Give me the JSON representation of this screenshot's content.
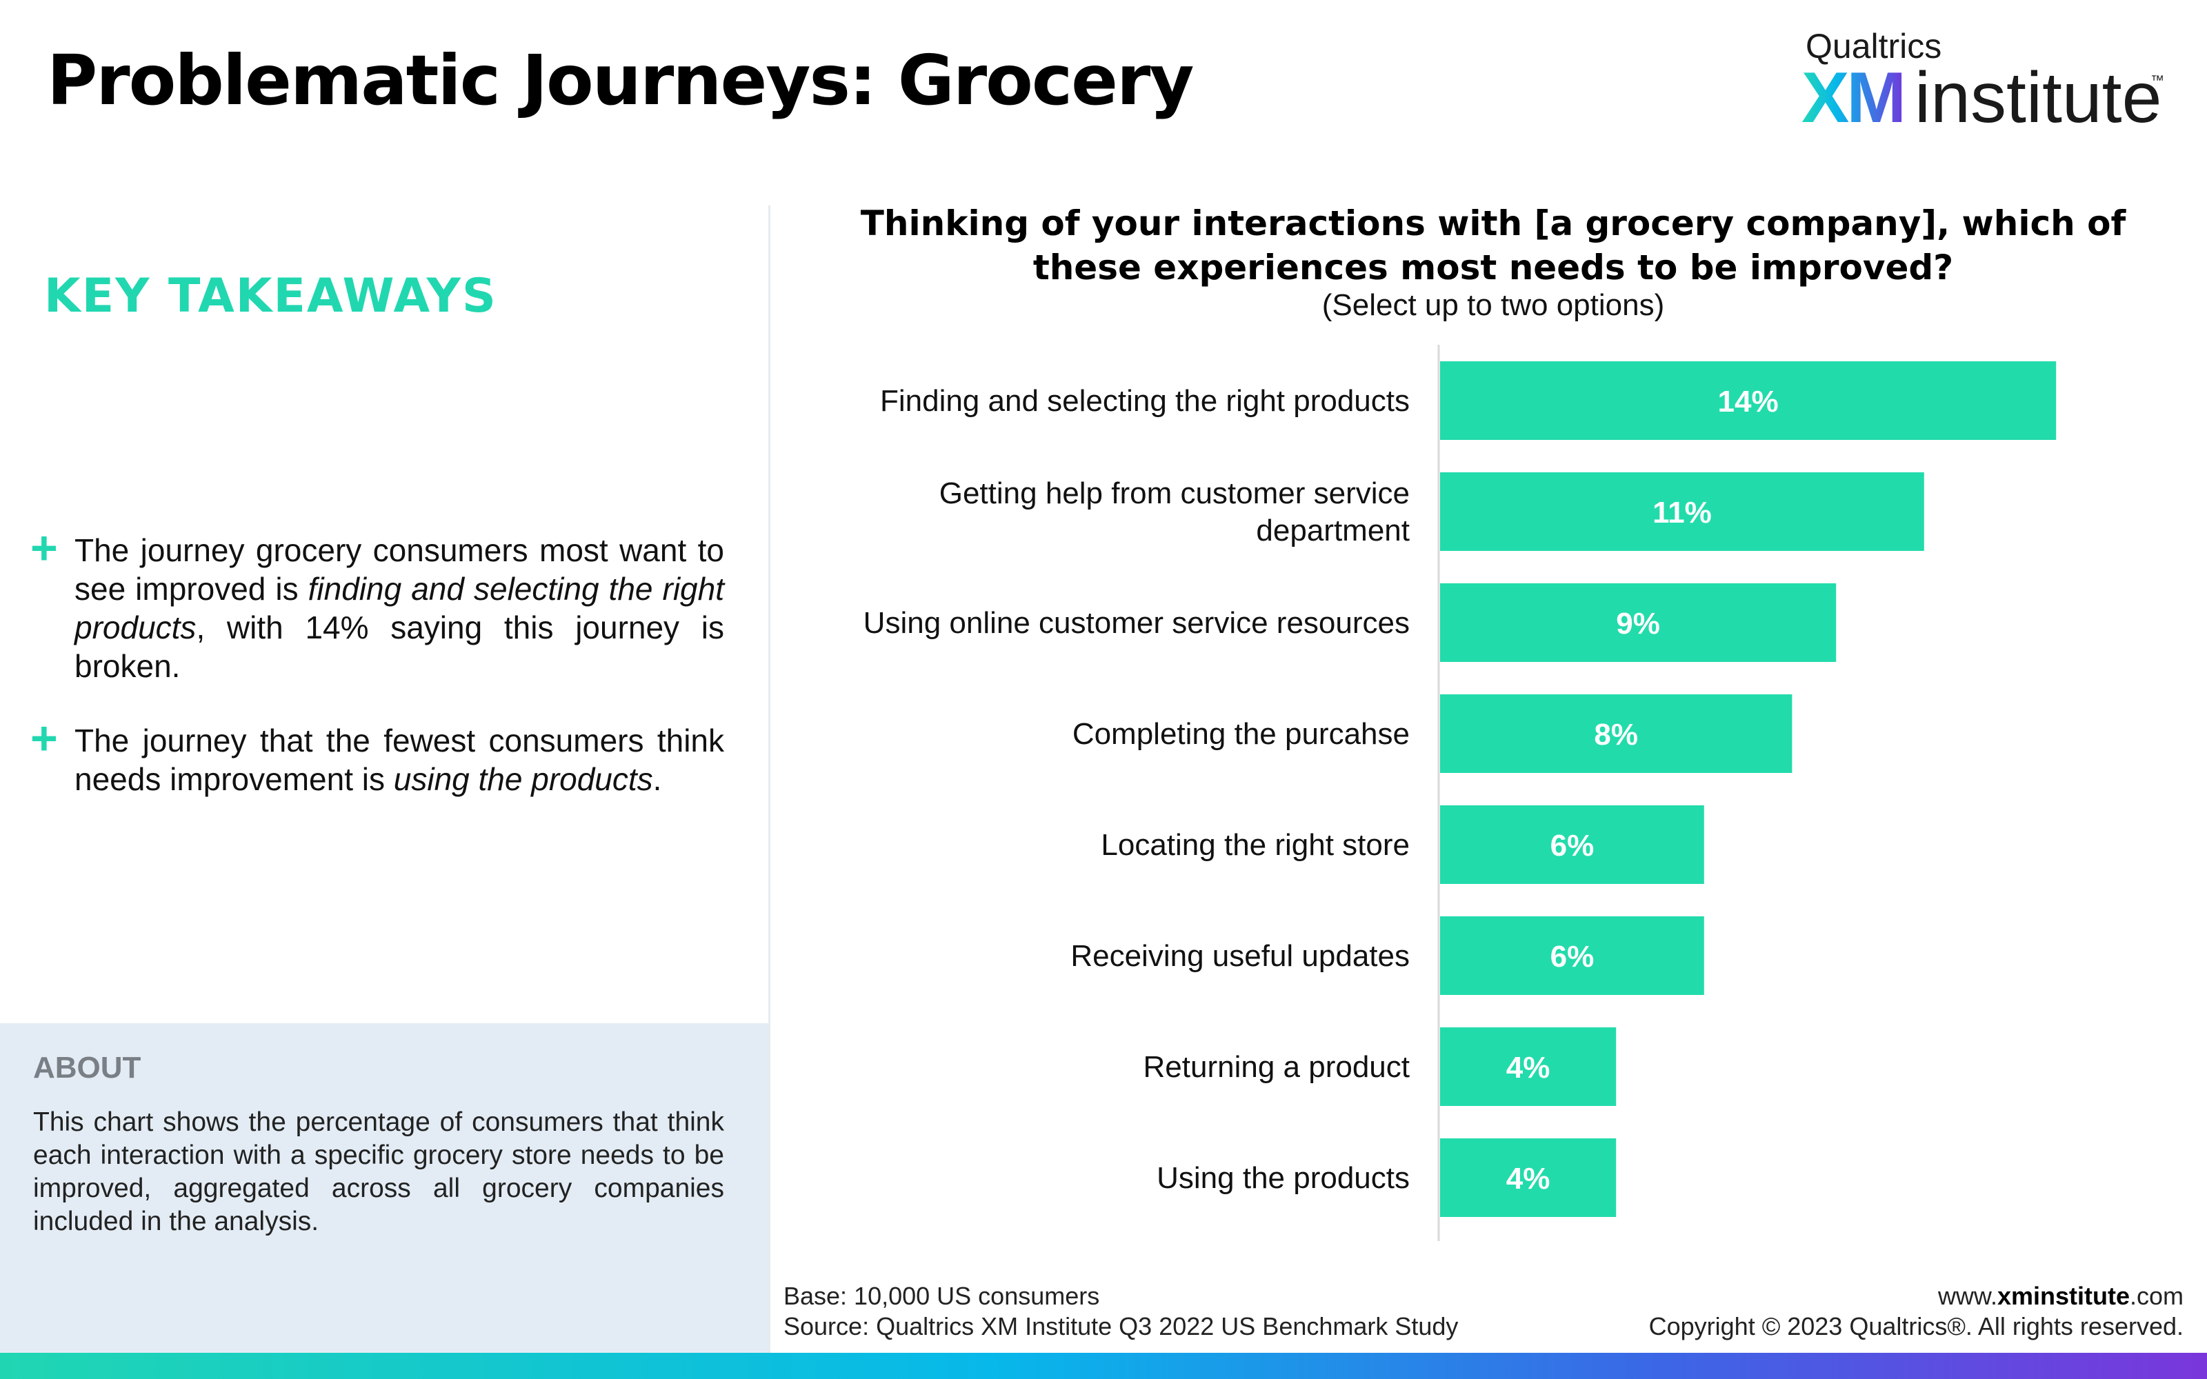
{
  "page": {
    "title": "Problematic Journeys: Grocery"
  },
  "logo": {
    "brand": "Qualtrics",
    "mark": "XM",
    "wordmark": "institute",
    "tm": "™"
  },
  "takeaways": {
    "heading": "KEY TAKEAWAYS",
    "bullets": [
      {
        "plus": "+",
        "before": "The journey grocery consumers most want to see improved is ",
        "emphasis": "finding and selecting the right products",
        "after": ", with 14% saying this journey is broken."
      },
      {
        "plus": "+",
        "before": "The journey that the fewest consumers think needs improvement is ",
        "emphasis": "using the products",
        "after": "."
      }
    ]
  },
  "about": {
    "heading": "ABOUT",
    "text": "This chart shows the percentage of consumers that think each interaction with a specific grocery store needs to be improved, aggregated across all grocery companies included in the analysis."
  },
  "question": {
    "text": "Thinking of your interactions with [a grocery company], which of these experiences most needs to be improved?",
    "note": "(Select up to two options)"
  },
  "chart_data": {
    "type": "bar",
    "orientation": "horizontal",
    "categories": [
      "Finding and selecting the right products",
      "Getting help from customer service department",
      "Using online customer service resources",
      "Completing the purcahse",
      "Locating the right store",
      "Receiving useful updates",
      "Returning a product",
      "Using the products"
    ],
    "values": [
      14,
      11,
      9,
      8,
      6,
      6,
      4,
      4
    ],
    "value_labels": [
      "14%",
      "11%",
      "9%",
      "8%",
      "6%",
      "6%",
      "4%",
      "4%"
    ],
    "unit": "%",
    "bar_color": "#22dbab",
    "label_color": "#ffffff",
    "grid": false,
    "legend": "none"
  },
  "footer": {
    "base": "Base: 10,000 US consumers",
    "source": "Source: Qualtrics XM Institute Q3 2022 US Benchmark Study",
    "url_prefix": "www.",
    "url_bold": "xminstitute",
    "url_suffix": ".com",
    "copyright": "Copyright © 2023 Qualtrics®. All rights reserved."
  },
  "colors": {
    "accent": "#21d7b0",
    "about_bg": "#e3ecf4",
    "about_heading": "#7a7f86"
  }
}
